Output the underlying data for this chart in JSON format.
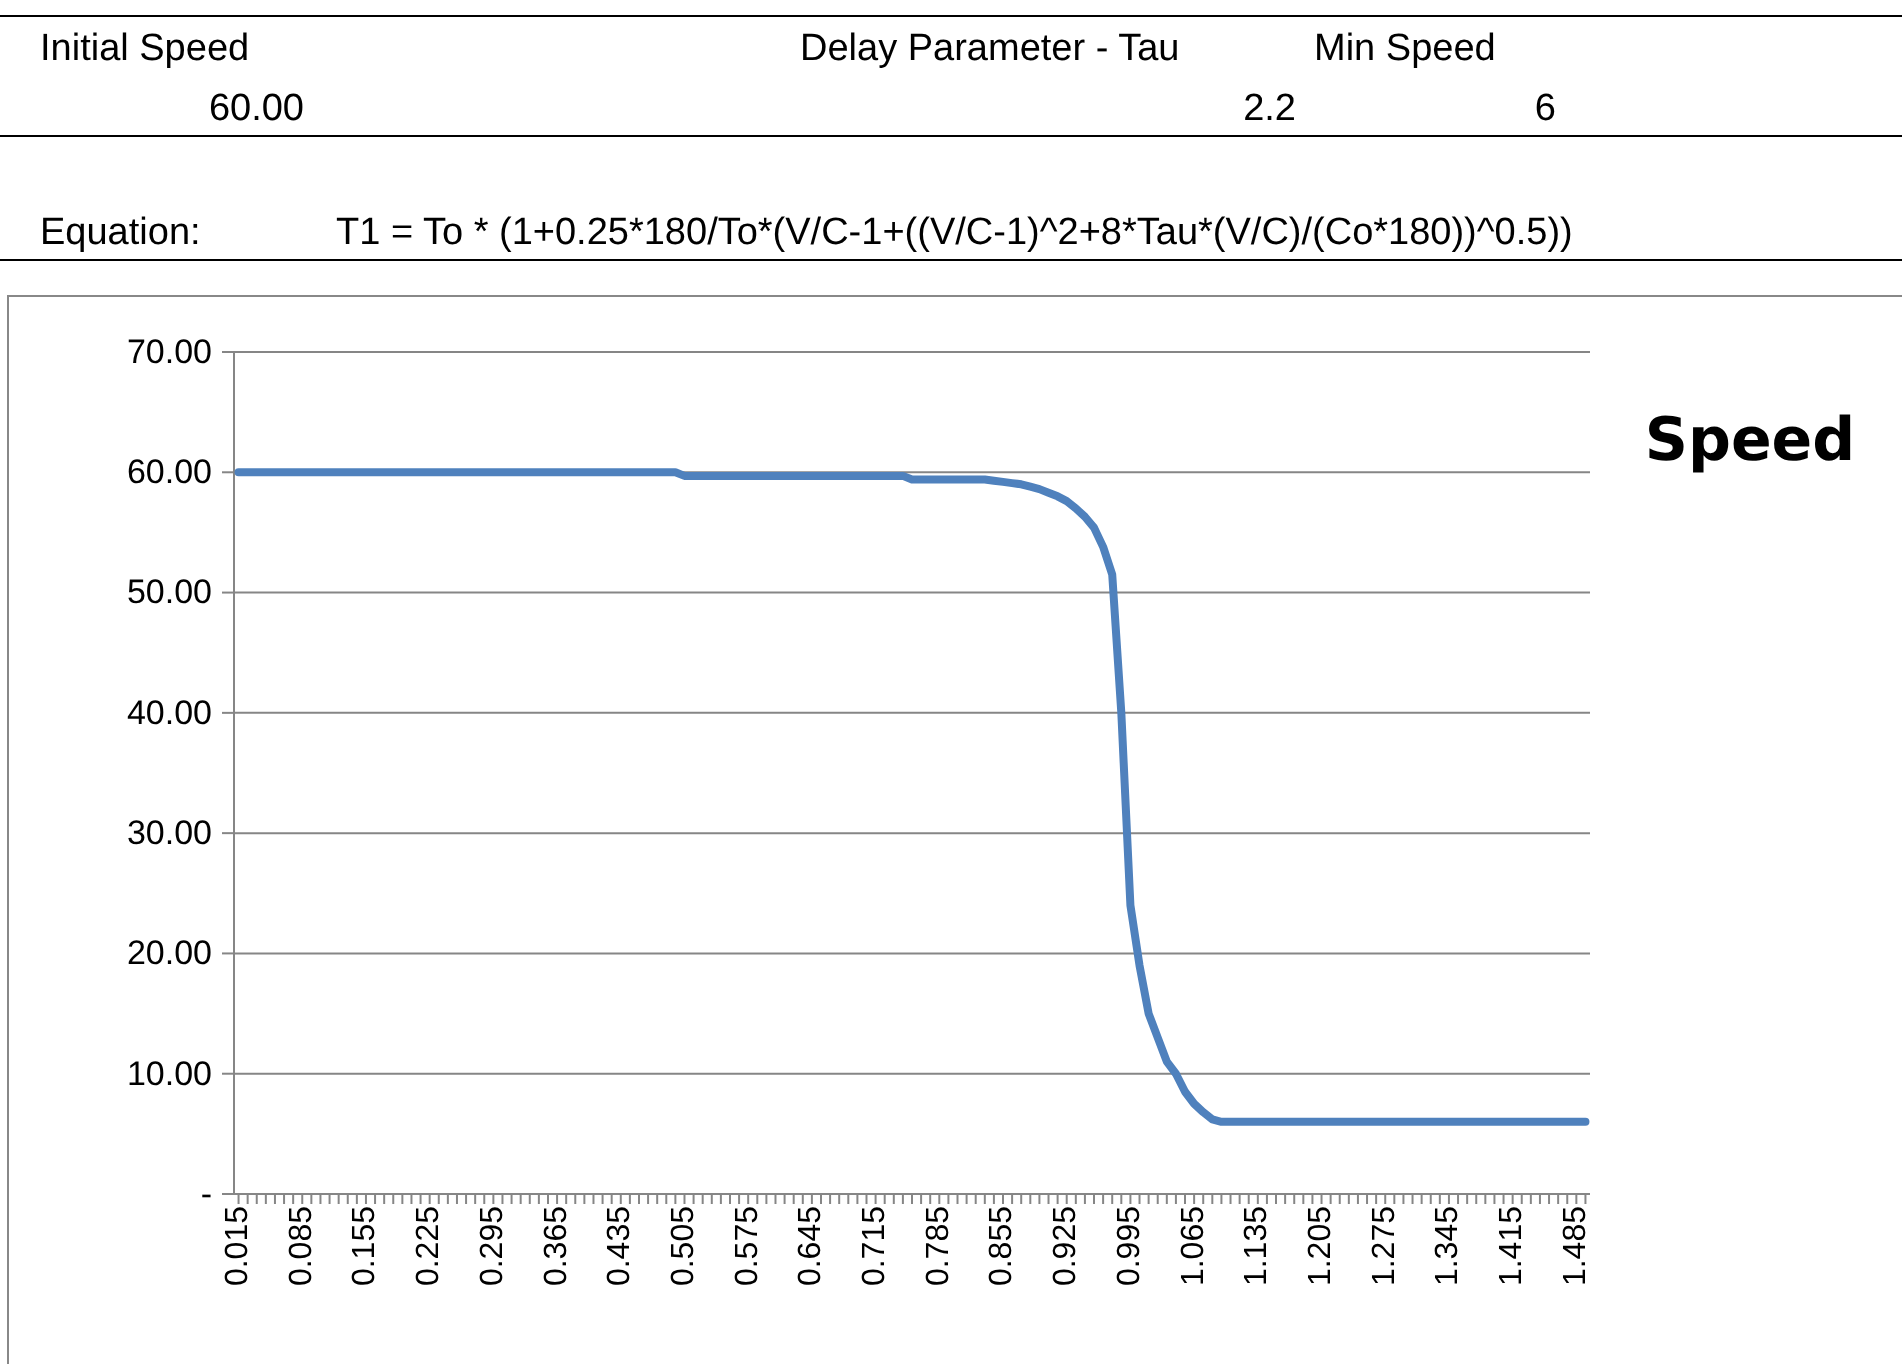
{
  "chart_data": {
    "type": "line",
    "title": "Speed",
    "annotations": [
      "Initial Speed",
      "60.00",
      "Delay Parameter - Tau",
      "2.2",
      "Min Speed",
      "6",
      "Equation:",
      "T1 = To * (1+0.25*180/To*(V/C-1+((V/C-1)^2+8*Tau*(V/C)/(Co*180))^0.5))"
    ],
    "categories": [
      "0.015",
      null,
      null,
      null,
      null,
      null,
      null,
      "0.085",
      null,
      null,
      null,
      null,
      null,
      null,
      "0.155",
      null,
      null,
      null,
      null,
      null,
      null,
      "0.225",
      null,
      null,
      null,
      null,
      null,
      null,
      "0.295",
      null,
      null,
      null,
      null,
      null,
      null,
      "0.365",
      null,
      null,
      null,
      null,
      null,
      null,
      "0.435",
      null,
      null,
      null,
      null,
      null,
      null,
      "0.505",
      null,
      null,
      null,
      null,
      null,
      null,
      "0.575",
      null,
      null,
      null,
      null,
      null,
      null,
      "0.645",
      null,
      null,
      null,
      null,
      null,
      null,
      "0.715",
      null,
      null,
      null,
      null,
      null,
      null,
      "0.785",
      null,
      null,
      null,
      null,
      null,
      null,
      "0.855",
      null,
      null,
      null,
      null,
      null,
      null,
      "0.925",
      null,
      null,
      null,
      null,
      null,
      null,
      "0.995",
      null,
      null,
      null,
      null,
      null,
      null,
      "1.065",
      null,
      null,
      null,
      null,
      null,
      null,
      "1.135",
      null,
      null,
      null,
      null,
      null,
      null,
      "1.205",
      null,
      null,
      null,
      null,
      null,
      null,
      "1.275",
      null,
      null,
      null,
      null,
      null,
      null,
      "1.345",
      null,
      null,
      null,
      null,
      null,
      null,
      "1.415",
      null,
      null,
      null,
      null,
      null,
      null,
      "1.485",
      null
    ],
    "series": [
      {
        "color": "#4f81bd",
        "values": [
          60,
          60,
          60,
          60,
          60,
          60,
          60,
          60,
          60,
          60,
          60,
          60,
          60,
          60,
          60,
          60,
          60,
          60,
          60,
          60,
          60,
          60,
          60,
          60,
          60,
          60,
          60,
          60,
          60,
          60,
          60,
          60,
          60,
          60,
          60,
          60,
          60,
          60,
          60,
          60,
          60,
          60,
          60,
          60,
          60,
          60,
          60,
          60,
          60,
          59.7,
          59.7,
          59.7,
          59.7,
          59.7,
          59.7,
          59.7,
          59.7,
          59.7,
          59.7,
          59.7,
          59.7,
          59.7,
          59.7,
          59.7,
          59.7,
          59.7,
          59.7,
          59.7,
          59.7,
          59.7,
          59.7,
          59.7,
          59.7,
          59.7,
          59.4,
          59.4,
          59.4,
          59.4,
          59.4,
          59.4,
          59.4,
          59.4,
          59.4,
          59.3,
          59.2,
          59.1,
          59.0,
          58.8,
          58.6,
          58.3,
          58.0,
          57.6,
          57.0,
          56.3,
          55.4,
          53.8,
          51.5,
          40.0,
          24.0,
          19.0,
          15.0,
          13.0,
          11.0,
          10.0,
          8.5,
          7.5,
          6.8,
          6.2,
          6,
          6,
          6,
          6,
          6,
          6,
          6,
          6,
          6,
          6,
          6,
          6,
          6,
          6,
          6,
          6,
          6,
          6,
          6,
          6,
          6,
          6,
          6,
          6,
          6,
          6,
          6,
          6,
          6,
          6,
          6,
          6,
          6,
          6,
          6,
          6,
          6,
          6,
          6,
          6,
          6
        ]
      }
    ],
    "ylim": [
      0,
      70
    ],
    "yticks": [
      {
        "value": 0,
        "label": "-"
      },
      {
        "value": 10,
        "label": "10.00"
      },
      {
        "value": 20,
        "label": "20.00"
      },
      {
        "value": 30,
        "label": "30.00"
      },
      {
        "value": 40,
        "label": "40.00"
      },
      {
        "value": 50,
        "label": "50.00"
      },
      {
        "value": 60,
        "label": "60.00"
      },
      {
        "value": 70,
        "label": "70.00"
      }
    ],
    "grid": "y",
    "marker": "none",
    "line_style": "solid"
  }
}
